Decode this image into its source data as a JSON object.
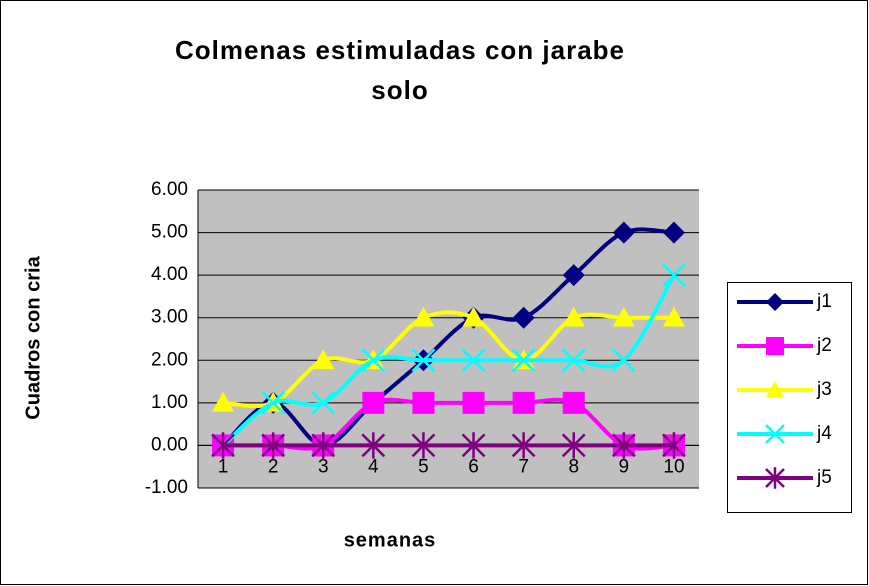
{
  "chart_data": {
    "type": "line",
    "title": "Colmenas estimuladas con jarabe solo",
    "x_label": "semanas",
    "y_label": "Cuadros con cria",
    "categories": [
      "1",
      "2",
      "3",
      "4",
      "5",
      "6",
      "7",
      "8",
      "9",
      "10"
    ],
    "series": [
      {
        "name": "j1",
        "color": "#000080",
        "marker": "diamond",
        "values": [
          0,
          1,
          0,
          1,
          2,
          3,
          3,
          4,
          5,
          5
        ]
      },
      {
        "name": "j2",
        "color": "#ff00ff",
        "marker": "square",
        "values": [
          0,
          0,
          0,
          1,
          1,
          1,
          1,
          1,
          0,
          0
        ]
      },
      {
        "name": "j3",
        "color": "#ffff00",
        "marker": "triangle",
        "values": [
          1,
          1,
          2,
          2,
          3,
          3,
          2,
          3,
          3,
          3
        ]
      },
      {
        "name": "j4",
        "color": "#00ffff",
        "marker": "x",
        "values": [
          0,
          1,
          1,
          2,
          2,
          2,
          2,
          2,
          2,
          4
        ]
      },
      {
        "name": "j5",
        "color": "#800080",
        "marker": "star",
        "values": [
          0,
          0,
          0,
          0,
          0,
          0,
          0,
          0,
          0,
          0
        ]
      }
    ],
    "ylim": [
      -1,
      6
    ],
    "yticks": [
      {
        "value": -1,
        "label": "-1.00"
      },
      {
        "value": 0,
        "label": "0.00"
      },
      {
        "value": 1,
        "label": "1.00"
      },
      {
        "value": 2,
        "label": "2.00"
      },
      {
        "value": 3,
        "label": "3.00"
      },
      {
        "value": 4,
        "label": "4.00"
      },
      {
        "value": 5,
        "label": "5.00"
      },
      {
        "value": 6,
        "label": "6.00"
      }
    ],
    "grid": true,
    "smooth": true,
    "legend": "right",
    "plot_background": "#c0c0c0"
  }
}
